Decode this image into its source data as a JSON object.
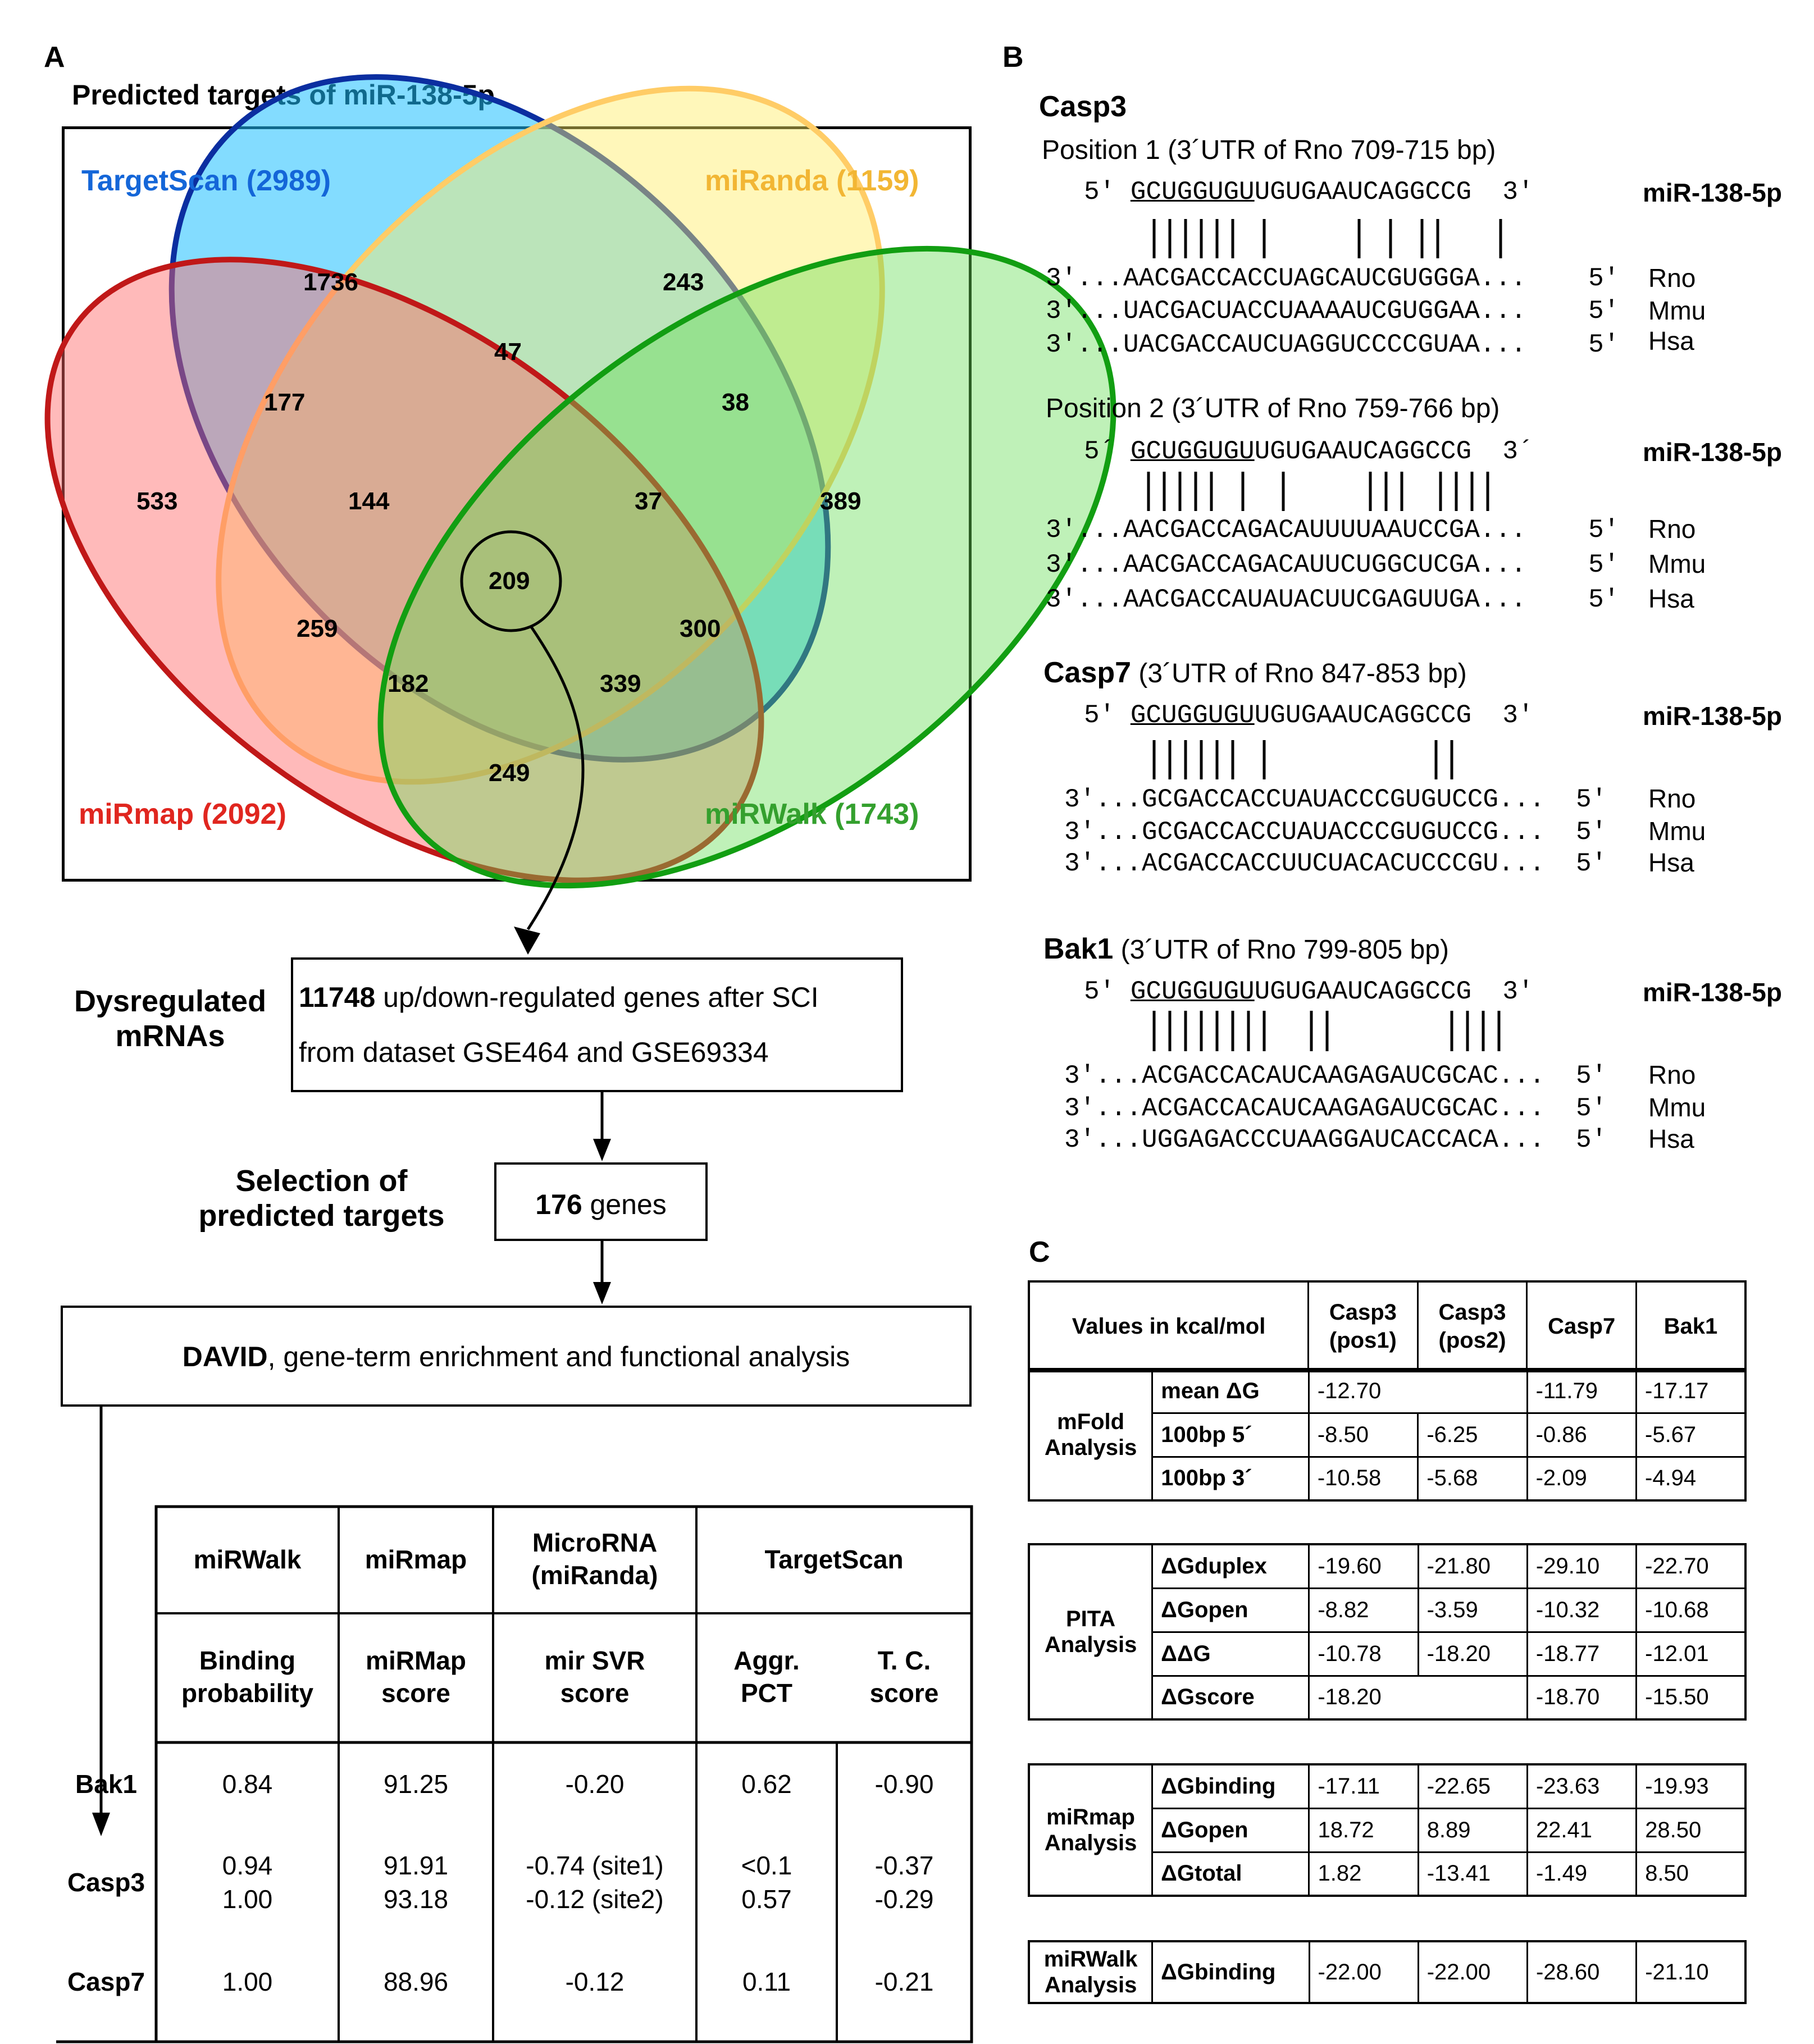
{
  "panel_labels": {
    "a": "A",
    "b": "B",
    "c": "C"
  },
  "venn": {
    "title": "Predicted targets of miR-138-5p",
    "sets": [
      {
        "name": "TargetScan (2989)",
        "color": "#1466d8"
      },
      {
        "name": "miRanda (1159)",
        "color": "#f2b634"
      },
      {
        "name": "miRmap (2092)",
        "color": "#e0261f"
      },
      {
        "name": "miRWalk (1743)",
        "color": "#34a02e"
      }
    ],
    "counts": {
      "ts_only": "1736",
      "mir_only": "243",
      "map_only": "533",
      "walk_only": "389",
      "ts_mir": "47",
      "ts_map": "177",
      "mir_walk": "38",
      "ts_map_mir": "144",
      "ts_mir_walk": "37",
      "all": "209",
      "map_mir": "259",
      "ts_walk": "300",
      "map_mir_walk": "182",
      "ts_map_walk": "339",
      "map_walk": "249"
    }
  },
  "flow": {
    "dys_label_1": "Dysregulated",
    "dys_label_2": "mRNAs",
    "dys_count": "11748",
    "dys_text_1": " up/down-regulated genes after SCI",
    "dys_text_2": "from dataset GSE464 and GSE69334",
    "sel_label_1": "Selection of",
    "sel_label_2": "predicted targets",
    "sel_count": "176",
    "sel_text": " genes",
    "david_bold": "DAVID",
    "david_text": ", gene-term enrichment and functional analysis"
  },
  "table_a": {
    "headers": [
      "miRWalk",
      "miRmap",
      "MicroRNA",
      "(miRanda)",
      "TargetScan"
    ],
    "subheaders": [
      [
        "Binding",
        "probability"
      ],
      [
        "miRMap",
        "score"
      ],
      [
        "mir SVR",
        "score"
      ],
      [
        "Aggr.",
        "PCT"
      ],
      [
        "T. C.",
        "score"
      ]
    ],
    "rows": [
      {
        "gene": "Bak1",
        "c1": "0.84",
        "c2": "91.25",
        "c3": "-0.20",
        "c4": "0.62",
        "c5": "-0.90"
      },
      {
        "gene": "Casp3",
        "c1": "0.94",
        "c1b": "1.00",
        "c2": "91.91",
        "c2b": "93.18",
        "c3": "-0.74 (site1)",
        "c3b": "-0.12 (site2)",
        "c4": "<0.1",
        "c4b": "0.57",
        "c5": "-0.37",
        "c5b": "-0.29"
      },
      {
        "gene": "Casp7",
        "c1": "1.00",
        "c2": "88.96",
        "c3": "-0.12",
        "c4": "0.11",
        "c5": "-0.21"
      }
    ]
  },
  "panel_b": {
    "mir_label": "miR-138-5p",
    "mir_seq_rest": "UGUGAAUCAGGCCG",
    "mir_seq_seed": "GCUGGUGU",
    "species": [
      "Rno",
      "Mmu",
      "Hsa"
    ],
    "casp3": {
      "gene": "Casp3",
      "pos1_title": "Position 1 (3´UTR of Rno 709-715 bp)",
      "pos1_seqs": [
        "...AACGACCACCUAGCAUCGUGGGA...",
        "...UACGACUACCUAAAAUCGUGGAA...",
        "...UACGACCAUCUAGGUCCCCGUAA..."
      ],
      "pos2_title": "Position 2 (3´UTR of Rno 759-766 bp)",
      "pos2_seqs": [
        "...AACGACCAGACAUUUUAAUCCGA...",
        "...AACGACCAGACAUUCUGGCUCGA...",
        "...AACGACCAUAUACUUCGAGUUGA..."
      ]
    },
    "casp7": {
      "gene": "Casp7",
      "title": " (3´UTR of Rno 847-853 bp)",
      "seqs": [
        "...GCGACCACCUAUACCCGUGUCCG...",
        "...GCGACCACCUAUACCCGUGUCCG...",
        "...ACGACCACCUUCUACACUCCCGU..."
      ]
    },
    "bak1": {
      "gene": "Bak1",
      "title": " (3´UTR of Rno 799-805 bp)",
      "seqs": [
        "...ACGACCACAUCAAGAGAUCGCAC...",
        "...ACGACCACAUCAAGAGAUCGCAC...",
        "...UGGAGACCCUAAGGAUCACCACA..."
      ]
    },
    "five": "5′",
    "three": "3′",
    "five_alt": "5´",
    "three_alt": "3´"
  },
  "table_c": {
    "header": [
      "Values in kcal/mol",
      "Casp3",
      "(pos1)",
      "Casp3",
      "(pos2)",
      "Casp7",
      "Bak1"
    ],
    "mfold": {
      "label1": "mFold",
      "label2": "Analysis",
      "rows": [
        {
          "name": "mean ΔG",
          "v1": "-12.70",
          "v3": "-11.79",
          "v4": "-17.17"
        },
        {
          "name": "100bp 5´",
          "v1": "-8.50",
          "v2": "-6.25",
          "v3": "-0.86",
          "v4": "-5.67"
        },
        {
          "name": "100bp 3´",
          "v1": "-10.58",
          "v2": "-5.68",
          "v3": "-2.09",
          "v4": "-4.94"
        }
      ]
    },
    "pita": {
      "label1": "PITA",
      "label2": "Analysis",
      "rows": [
        {
          "name": "ΔGduplex",
          "v1": "-19.60",
          "v2": "-21.80",
          "v3": "-29.10",
          "v4": "-22.70"
        },
        {
          "name": "ΔGopen",
          "v1": "-8.82",
          "v2": "-3.59",
          "v3": "-10.32",
          "v4": "-10.68"
        },
        {
          "name": "ΔΔG",
          "v1": "-10.78",
          "v2": "-18.20",
          "v3": "-18.77",
          "v4": "-12.01"
        },
        {
          "name": "ΔGscore",
          "v1": "-18.20",
          "v3": "-18.70",
          "v4": "-15.50"
        }
      ]
    },
    "mirmap": {
      "label1": "miRmap",
      "label2": "Analysis",
      "rows": [
        {
          "name": "ΔGbinding",
          "v1": "-17.11",
          "v2": "-22.65",
          "v3": "-23.63",
          "v4": "-19.93"
        },
        {
          "name": "ΔGopen",
          "v1": "18.72",
          "v2": "8.89",
          "v3": "22.41",
          "v4": "28.50"
        },
        {
          "name": "ΔGtotal",
          "v1": "1.82",
          "v2": "-13.41",
          "v3": "-1.49",
          "v4": "8.50"
        }
      ]
    },
    "mirwalk": {
      "label1": "miRWalk",
      "label2": "Analysis",
      "row": {
        "name": "ΔGbinding",
        "v1": "-22.00",
        "v2": "-22.00",
        "v3": "-28.60",
        "v4": "-21.10"
      }
    }
  }
}
